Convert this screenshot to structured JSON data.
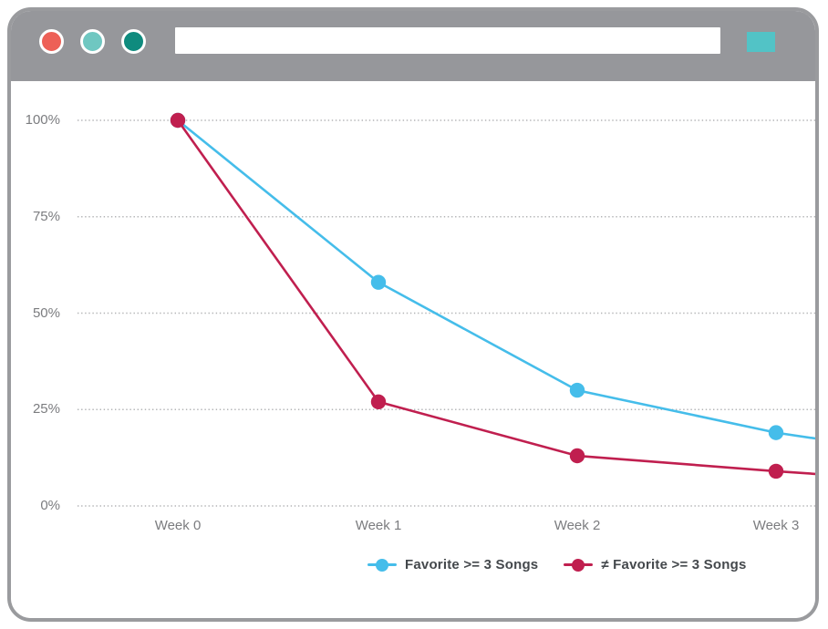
{
  "window": {
    "titlebar": {
      "bar_color": "#96979B",
      "buttons": [
        {
          "name": "close",
          "color": "#ED6057"
        },
        {
          "name": "minimize",
          "color": "#6FC7C1"
        },
        {
          "name": "maximize",
          "color": "#0F8B7E"
        }
      ],
      "url_value": "",
      "url_placeholder": "",
      "menu_color": "#52C3C6"
    }
  },
  "chart_data": {
    "type": "line",
    "title": "",
    "xlabel": "",
    "ylabel": "",
    "categories": [
      "Week 0",
      "Week 1",
      "Week 2",
      "Week 3"
    ],
    "y_ticks": [
      "100%",
      "75%",
      "50%",
      "25%",
      "0%"
    ],
    "ylim": [
      0,
      100
    ],
    "grid": "dotted horizontal gridlines at 0, 25, 50, 75, 100",
    "gridline_color": "#B3B4B6",
    "legend_position": "bottom-center",
    "series": [
      {
        "name": "Favorite >= 3 Songs",
        "color": "#45BDEA",
        "values": [
          100,
          58,
          30,
          19
        ],
        "edge_value": 17.5
      },
      {
        "name": "≠ Favorite >= 3 Songs",
        "color": "#C01F4F",
        "values": [
          100,
          27,
          13,
          9
        ],
        "edge_value": 8.3
      }
    ]
  }
}
